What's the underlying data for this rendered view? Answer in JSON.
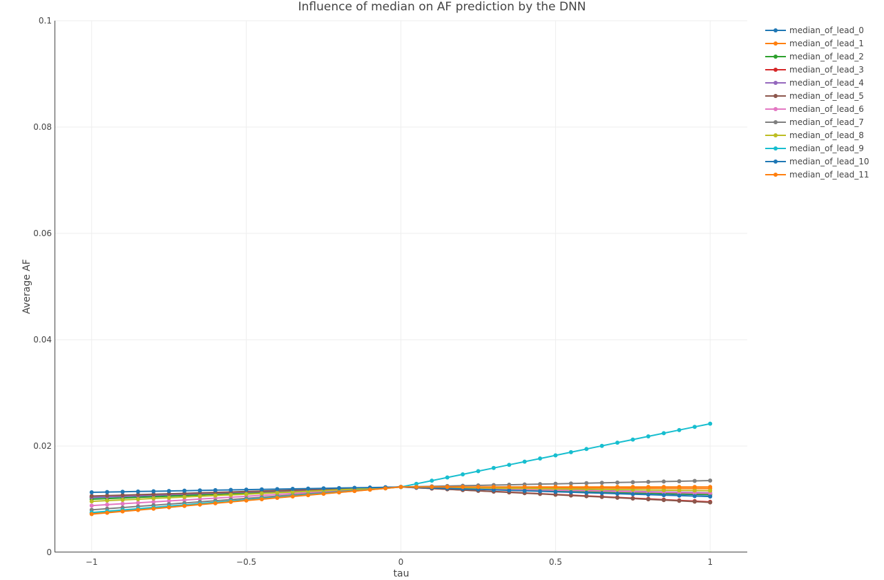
{
  "chart_data": {
    "type": "line",
    "title": "Influence of median on AF prediction by the DNN",
    "xlabel": "tau",
    "ylabel": "Average AF",
    "xlim": [
      -1.12,
      1.12
    ],
    "ylim": [
      0,
      0.1
    ],
    "xticks": [
      -1,
      -0.5,
      0,
      0.5,
      1
    ],
    "xtick_labels": [
      "−1",
      "−0.5",
      "0",
      "0.5",
      "1"
    ],
    "yticks": [
      0,
      0.02,
      0.04,
      0.06,
      0.08,
      0.1
    ],
    "ytick_labels": [
      "0",
      "0.02",
      "0.04",
      "0.06",
      "0.08",
      "0.1"
    ],
    "grid": true,
    "legend_position": "top-right",
    "x": [
      -1,
      -0.95,
      -0.9,
      -0.85,
      -0.8,
      -0.75,
      -0.7,
      -0.65,
      -0.6,
      -0.55,
      -0.5,
      -0.45,
      -0.4,
      -0.35,
      -0.3,
      -0.25,
      -0.2,
      -0.15,
      -0.1,
      -0.05,
      0,
      0.05,
      0.1,
      0.15,
      0.2,
      0.25,
      0.3,
      0.35,
      0.4,
      0.45,
      0.5,
      0.55,
      0.6,
      0.65,
      0.7,
      0.75,
      0.8,
      0.85,
      0.9,
      0.95,
      1
    ],
    "series": [
      {
        "name": "median_of_lead_0",
        "color": "#1f77b4",
        "start": 0.0103,
        "end": 0.0108
      },
      {
        "name": "median_of_lead_1",
        "color": "#ff7f0e",
        "start": 0.0073,
        "end": 0.012
      },
      {
        "name": "median_of_lead_2",
        "color": "#2ca02c",
        "start": 0.01,
        "end": 0.0109
      },
      {
        "name": "median_of_lead_3",
        "color": "#d62728",
        "start": 0.0104,
        "end": 0.0095
      },
      {
        "name": "median_of_lead_4",
        "color": "#9467bd",
        "start": 0.0104,
        "end": 0.0112
      },
      {
        "name": "median_of_lead_5",
        "color": "#8c564b",
        "start": 0.0106,
        "end": 0.0094
      },
      {
        "name": "median_of_lead_6",
        "color": "#e377c2",
        "start": 0.0088,
        "end": 0.0111
      },
      {
        "name": "median_of_lead_7",
        "color": "#7f7f7f",
        "start": 0.008,
        "end": 0.0135
      },
      {
        "name": "median_of_lead_8",
        "color": "#bcbd22",
        "start": 0.0096,
        "end": 0.0116
      },
      {
        "name": "median_of_lead_9",
        "color": "#17becf",
        "start": 0.0075,
        "end": 0.0242
      },
      {
        "name": "median_of_lead_10",
        "color": "#1f77b4",
        "start": 0.0113,
        "end": 0.0105
      },
      {
        "name": "median_of_lead_11",
        "color": "#ff7f0e",
        "start": 0.0072,
        "end": 0.0123
      }
    ],
    "center_value": 0.0123
  }
}
